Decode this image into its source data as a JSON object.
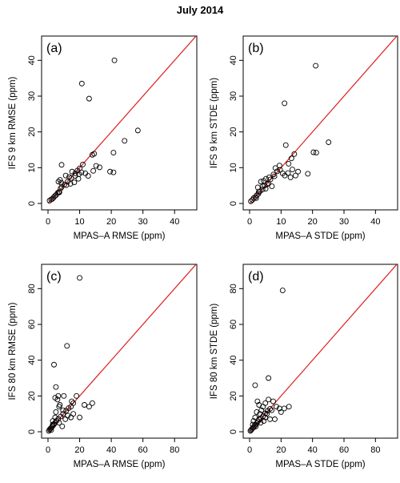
{
  "figure": {
    "title": "July 2014",
    "identity_line_color": "#dd1c1c",
    "point_stroke_color": "#000000"
  },
  "chart_data": [
    {
      "type": "scatter",
      "panel_label": "(a)",
      "xlabel": "MPAS–A RMSE (ppm)",
      "ylabel": "IFS 9 km RMSE (ppm)",
      "xlim": [
        0,
        45
      ],
      "ylim": [
        0,
        45
      ],
      "xticks": [
        0,
        10,
        20,
        30,
        40
      ],
      "yticks": [
        0,
        10,
        20,
        30,
        40
      ],
      "reference_line": "y = x",
      "points": [
        [
          0.5,
          0.8
        ],
        [
          1,
          1.1
        ],
        [
          1.4,
          1.3
        ],
        [
          1.8,
          1.7
        ],
        [
          2.2,
          2.1
        ],
        [
          2.6,
          2.4
        ],
        [
          3,
          2.9
        ],
        [
          3.4,
          3.2
        ],
        [
          4.3,
          4.6
        ],
        [
          5.2,
          5.3
        ],
        [
          6.2,
          6.1
        ],
        [
          7.3,
          7.1
        ],
        [
          8.6,
          8.4
        ],
        [
          9.3,
          9.2
        ],
        [
          10,
          9.8
        ],
        [
          11,
          10.9
        ],
        [
          14,
          13.6
        ],
        [
          14.6,
          13.9
        ],
        [
          3.3,
          6.1
        ],
        [
          3.8,
          6.6
        ],
        [
          4.2,
          5.8
        ],
        [
          5.6,
          7.8
        ],
        [
          6.7,
          7.4
        ],
        [
          7.6,
          8.9
        ],
        [
          8.6,
          7.7
        ],
        [
          9.8,
          8.2
        ],
        [
          10.6,
          8.7
        ],
        [
          11.8,
          8.4
        ],
        [
          4.3,
          10.8
        ],
        [
          4,
          4.2
        ],
        [
          3.6,
          3.1
        ],
        [
          5.8,
          5.1
        ],
        [
          7.1,
          5.5
        ],
        [
          8.3,
          5.9
        ],
        [
          9.6,
          6.9
        ],
        [
          12.7,
          7.7
        ],
        [
          14.3,
          9.1
        ],
        [
          15.2,
          10.5
        ],
        [
          16.3,
          10.1
        ],
        [
          19.6,
          8.9
        ],
        [
          20.7,
          8.7
        ],
        [
          20.7,
          14.2
        ],
        [
          24.2,
          17.5
        ],
        [
          28.4,
          20.4
        ],
        [
          10.7,
          33.5
        ],
        [
          13,
          29.3
        ],
        [
          21,
          40
        ]
      ]
    },
    {
      "type": "scatter",
      "panel_label": "(b)",
      "xlabel": "MPAS–A STDE (ppm)",
      "ylabel": "IFS 9 km STDE (ppm)",
      "xlim": [
        0,
        45
      ],
      "ylim": [
        0,
        45
      ],
      "xticks": [
        0,
        10,
        20,
        30,
        40
      ],
      "yticks": [
        0,
        10,
        20,
        30,
        40
      ],
      "reference_line": "y = x",
      "points": [
        [
          0.4,
          0.6
        ],
        [
          0.9,
          1
        ],
        [
          1.3,
          1.5
        ],
        [
          1.8,
          1.8
        ],
        [
          2.3,
          2.3
        ],
        [
          2.8,
          2.7
        ],
        [
          3.3,
          3.4
        ],
        [
          4.1,
          3.9
        ],
        [
          4.8,
          5
        ],
        [
          5.6,
          5.4
        ],
        [
          6.6,
          6.7
        ],
        [
          7.9,
          7.6
        ],
        [
          8.8,
          9
        ],
        [
          9.7,
          9.4
        ],
        [
          2.6,
          4.5
        ],
        [
          3.6,
          6.1
        ],
        [
          4.2,
          4.8
        ],
        [
          5.2,
          6.9
        ],
        [
          6.2,
          7.3
        ],
        [
          7.1,
          4.8
        ],
        [
          7.6,
          8.1
        ],
        [
          8.2,
          9.9
        ],
        [
          9.5,
          10.6
        ],
        [
          10.5,
          8.4
        ],
        [
          11.2,
          7.8
        ],
        [
          12.2,
          8.5
        ],
        [
          13,
          7.3
        ],
        [
          13.6,
          9.5
        ],
        [
          13.3,
          12.6
        ],
        [
          14.6,
          7.8
        ],
        [
          15.4,
          8.9
        ],
        [
          14.2,
          13.8
        ],
        [
          18.5,
          8.3
        ],
        [
          20.3,
          14.3
        ],
        [
          21.2,
          14.2
        ],
        [
          25.1,
          17.1
        ],
        [
          11.5,
          16.3
        ],
        [
          12.4,
          11.1
        ],
        [
          11.1,
          28
        ],
        [
          21,
          38.5
        ],
        [
          2.9,
          3.2
        ],
        [
          4.5,
          6.3
        ],
        [
          6,
          5.6
        ],
        [
          2.1,
          1.5
        ],
        [
          5.1,
          4.1
        ]
      ]
    },
    {
      "type": "scatter",
      "panel_label": "(c)",
      "xlabel": "MPAS–A RMSE (ppm)",
      "ylabel": "IFS 80 km RMSE (ppm)",
      "xlim": [
        0,
        90
      ],
      "ylim": [
        0,
        90
      ],
      "xticks": [
        0,
        20,
        40,
        60,
        80
      ],
      "yticks": [
        0,
        20,
        40,
        60,
        80
      ],
      "reference_line": "y = x",
      "points": [
        [
          0.5,
          0.5
        ],
        [
          1,
          1.2
        ],
        [
          1.5,
          1.7
        ],
        [
          2,
          2.2
        ],
        [
          2.6,
          2.9
        ],
        [
          3.2,
          3.5
        ],
        [
          3.8,
          4.2
        ],
        [
          4.5,
          5
        ],
        [
          5.3,
          6
        ],
        [
          6.5,
          7.2
        ],
        [
          8,
          8.5
        ],
        [
          9.5,
          10
        ],
        [
          11.5,
          11.8
        ],
        [
          13,
          13.2
        ],
        [
          14.5,
          14
        ],
        [
          3,
          6
        ],
        [
          4.5,
          8
        ],
        [
          5,
          11
        ],
        [
          6,
          18
        ],
        [
          7,
          14
        ],
        [
          5,
          25
        ],
        [
          3.8,
          37.5
        ],
        [
          4.5,
          19
        ],
        [
          6.5,
          20
        ],
        [
          7.5,
          15
        ],
        [
          9.5,
          12
        ],
        [
          10,
          20
        ],
        [
          12.5,
          9
        ],
        [
          14.5,
          8
        ],
        [
          16,
          10
        ],
        [
          16,
          16
        ],
        [
          18,
          20
        ],
        [
          20,
          8
        ],
        [
          23,
          15
        ],
        [
          26,
          14
        ],
        [
          28,
          16
        ],
        [
          12,
          48
        ],
        [
          20,
          86
        ],
        [
          7,
          5
        ],
        [
          9,
          3
        ],
        [
          11,
          7
        ],
        [
          2,
          1
        ],
        [
          3,
          4
        ],
        [
          15,
          17
        ]
      ]
    },
    {
      "type": "scatter",
      "panel_label": "(d)",
      "xlabel": "MPAS–A STDE (ppm)",
      "ylabel": "IFS 80 km STDE (ppm)",
      "xlim": [
        0,
        90
      ],
      "ylim": [
        0,
        90
      ],
      "xticks": [
        0,
        20,
        40,
        60,
        80
      ],
      "yticks": [
        0,
        20,
        40,
        60,
        80
      ],
      "reference_line": "y = x",
      "points": [
        [
          0.5,
          0.5
        ],
        [
          1,
          1
        ],
        [
          1.5,
          1.6
        ],
        [
          2,
          2.1
        ],
        [
          2.6,
          2.5
        ],
        [
          3.2,
          3.4
        ],
        [
          3.8,
          4
        ],
        [
          4.5,
          4.8
        ],
        [
          5.3,
          5.8
        ],
        [
          6.2,
          6.8
        ],
        [
          7.2,
          7.5
        ],
        [
          8.5,
          8.7
        ],
        [
          10,
          10.3
        ],
        [
          11.5,
          11.7
        ],
        [
          13,
          12.8
        ],
        [
          2.5,
          6
        ],
        [
          3.5,
          8
        ],
        [
          4.5,
          11
        ],
        [
          5,
          17
        ],
        [
          6,
          15
        ],
        [
          6.5,
          10
        ],
        [
          7.5,
          12
        ],
        [
          8.5,
          14
        ],
        [
          10,
          16
        ],
        [
          11,
          10
        ],
        [
          12,
          18
        ],
        [
          14,
          12
        ],
        [
          15,
          17
        ],
        [
          16,
          7
        ],
        [
          17,
          14
        ],
        [
          19,
          13
        ],
        [
          20,
          11
        ],
        [
          22,
          13
        ],
        [
          25,
          14
        ],
        [
          3.5,
          26
        ],
        [
          12,
          30
        ],
        [
          21,
          79
        ],
        [
          7,
          5
        ],
        [
          9,
          6
        ],
        [
          10,
          8
        ],
        [
          13,
          7
        ],
        [
          2,
          4
        ],
        [
          4,
          3
        ],
        [
          6,
          7
        ]
      ]
    }
  ]
}
